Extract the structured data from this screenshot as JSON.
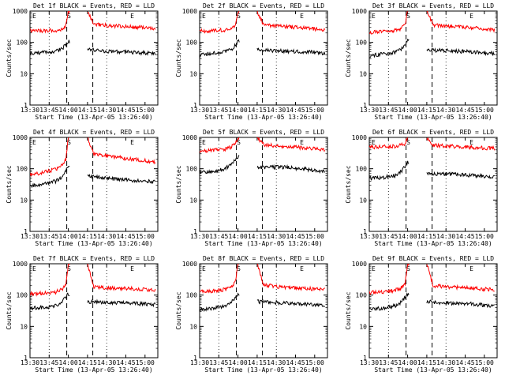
{
  "line_colors": {
    "events": "#000000",
    "lld": "#ff0000"
  },
  "chart_data": [
    {
      "type": "line",
      "title": "Det 1f BLACK = Events, RED = LLD",
      "xlabel": "Start Time (13-Apr-05 13:26:40)",
      "ylabel": "Counts/sec",
      "yscale": "log",
      "ylim": [
        1,
        1000
      ],
      "xlim": [
        "13:30",
        "15:10"
      ],
      "x_tick_labels": [
        "13:30",
        "13:45",
        "14:00",
        "14:15",
        "14:30",
        "14:45",
        "15:00"
      ],
      "y_tick_labels": [
        "1",
        "10",
        "100",
        "1000"
      ],
      "markers": {
        "S": "14:00",
        "E_start": "13:30",
        "E_end": "14:50"
      },
      "grid": "dotted vertical at 13:45 and 14:30",
      "series": [
        {
          "name": "Events",
          "color": "#000000",
          "x": [
            "13:30",
            "13:40",
            "13:50",
            "13:55",
            "13:58",
            "14:00",
            "14:15",
            "14:20",
            "14:30",
            "14:40",
            "14:50",
            "15:00",
            "15:08"
          ],
          "y": [
            44,
            48,
            52,
            62,
            85,
            110,
            58,
            56,
            52,
            50,
            48,
            46,
            44
          ]
        },
        {
          "name": "LLD",
          "color": "#ff0000",
          "x": [
            "13:30",
            "13:40",
            "13:50",
            "13:55",
            "13:58",
            "14:00",
            "14:15",
            "14:20",
            "14:30",
            "14:40",
            "14:50",
            "15:00",
            "15:08"
          ],
          "y": [
            230,
            235,
            240,
            270,
            340,
            1000,
            1000,
            380,
            350,
            330,
            310,
            300,
            280
          ]
        }
      ]
    },
    {
      "type": "line",
      "title": "Det 2f BLACK = Events, RED = LLD",
      "xlabel": "Start Time (13-Apr-05 13:26:40)",
      "ylabel": "Counts/sec",
      "yscale": "log",
      "ylim": [
        1,
        1000
      ],
      "xlim": [
        "13:30",
        "15:10"
      ],
      "x_tick_labels": [
        "13:30",
        "13:45",
        "14:00",
        "14:15",
        "14:30",
        "14:45",
        "15:00"
      ],
      "y_tick_labels": [
        "1",
        "10",
        "100",
        "1000"
      ],
      "markers": {
        "S": "14:00",
        "E_start": "13:30",
        "E_end": "14:50"
      },
      "grid": "dotted vertical at 13:45 and 14:30",
      "series": [
        {
          "name": "Events",
          "color": "#000000",
          "x": [
            "13:30",
            "13:40",
            "13:50",
            "13:55",
            "13:58",
            "14:00",
            "14:15",
            "14:20",
            "14:30",
            "14:40",
            "14:50",
            "15:00",
            "15:08"
          ],
          "y": [
            40,
            45,
            50,
            60,
            80,
            110,
            62,
            58,
            54,
            52,
            50,
            48,
            45
          ]
        },
        {
          "name": "LLD",
          "color": "#ff0000",
          "x": [
            "13:30",
            "13:40",
            "13:50",
            "13:55",
            "13:58",
            "14:00",
            "14:15",
            "14:20",
            "14:30",
            "14:40",
            "14:50",
            "15:00",
            "15:08"
          ],
          "y": [
            230,
            240,
            250,
            280,
            350,
            1000,
            1000,
            360,
            330,
            310,
            290,
            270,
            250
          ]
        }
      ]
    },
    {
      "type": "line",
      "title": "Det 3f BLACK = Events, RED = LLD",
      "xlabel": "Start Time (13-Apr-05 13:26:40)",
      "ylabel": "Counts/sec",
      "yscale": "log",
      "ylim": [
        1,
        1000
      ],
      "xlim": [
        "13:30",
        "15:10"
      ],
      "x_tick_labels": [
        "13:30",
        "13:45",
        "14:00",
        "14:15",
        "14:30",
        "14:45",
        "15:00"
      ],
      "y_tick_labels": [
        "1",
        "10",
        "100",
        "1000"
      ],
      "markers": {
        "S": "14:00",
        "E_start": "13:30",
        "E_end": "14:50"
      },
      "grid": "dotted vertical at 13:45 and 14:30",
      "series": [
        {
          "name": "Events",
          "color": "#000000",
          "x": [
            "13:30",
            "13:40",
            "13:50",
            "13:55",
            "13:58",
            "14:00",
            "14:15",
            "14:20",
            "14:30",
            "14:40",
            "14:50",
            "15:00",
            "15:08"
          ],
          "y": [
            38,
            42,
            48,
            60,
            82,
            120,
            60,
            56,
            54,
            52,
            50,
            47,
            44
          ]
        },
        {
          "name": "LLD",
          "color": "#ff0000",
          "x": [
            "13:30",
            "13:40",
            "13:50",
            "13:55",
            "13:58",
            "14:00",
            "14:15",
            "14:20",
            "14:30",
            "14:40",
            "14:50",
            "15:00",
            "15:08"
          ],
          "y": [
            210,
            220,
            240,
            280,
            350,
            1000,
            1000,
            360,
            330,
            310,
            290,
            270,
            250
          ]
        }
      ]
    },
    {
      "type": "line",
      "title": "Det 4f BLACK = Events, RED = LLD",
      "xlabel": "Start Time (13-Apr-05 13:26:40)",
      "ylabel": "Counts/sec",
      "yscale": "log",
      "ylim": [
        1,
        1000
      ],
      "xlim": [
        "13:30",
        "15:10"
      ],
      "x_tick_labels": [
        "13:30",
        "13:45",
        "14:00",
        "14:15",
        "14:30",
        "14:45",
        "15:00"
      ],
      "y_tick_labels": [
        "1",
        "10",
        "100",
        "1000"
      ],
      "markers": {
        "S": "14:00",
        "E_start": "13:30",
        "E_end": "14:50"
      },
      "grid": "dotted vertical at 13:45 and 14:30",
      "series": [
        {
          "name": "Events",
          "color": "#000000",
          "x": [
            "13:30",
            "13:40",
            "13:50",
            "13:55",
            "13:58",
            "14:00",
            "14:15",
            "14:20",
            "14:30",
            "14:40",
            "14:50",
            "15:00",
            "15:08"
          ],
          "y": [
            28,
            32,
            40,
            55,
            90,
            130,
            62,
            55,
            50,
            46,
            42,
            40,
            38
          ]
        },
        {
          "name": "LLD",
          "color": "#ff0000",
          "x": [
            "13:30",
            "13:40",
            "13:50",
            "13:55",
            "13:58",
            "14:00",
            "14:15",
            "14:20",
            "14:30",
            "14:40",
            "14:50",
            "15:00",
            "15:08"
          ],
          "y": [
            65,
            75,
            95,
            130,
            200,
            1000,
            1000,
            300,
            260,
            230,
            200,
            180,
            160
          ]
        }
      ]
    },
    {
      "type": "line",
      "title": "Det 5f BLACK = Events, RED = LLD",
      "xlabel": "Start Time (13-Apr-05 13:26:40)",
      "ylabel": "Counts/sec",
      "yscale": "log",
      "ylim": [
        1,
        1000
      ],
      "xlim": [
        "13:30",
        "15:10"
      ],
      "x_tick_labels": [
        "13:30",
        "13:45",
        "14:00",
        "14:15",
        "14:30",
        "14:45",
        "15:00"
      ],
      "y_tick_labels": [
        "1",
        "10",
        "100",
        "1000"
      ],
      "markers": {
        "S": "14:00",
        "E_start": "13:30",
        "E_end": "14:50"
      },
      "grid": "dotted vertical at 13:45 and 14:30",
      "series": [
        {
          "name": "Events",
          "color": "#000000",
          "x": [
            "13:30",
            "13:40",
            "13:50",
            "13:55",
            "13:58",
            "14:00",
            "14:15",
            "14:20",
            "14:30",
            "14:40",
            "14:50",
            "15:00",
            "15:08"
          ],
          "y": [
            75,
            80,
            100,
            140,
            200,
            250,
            110,
            110,
            112,
            110,
            100,
            90,
            80
          ]
        },
        {
          "name": "LLD",
          "color": "#ff0000",
          "x": [
            "13:30",
            "13:40",
            "13:50",
            "13:55",
            "13:58",
            "14:00",
            "14:15",
            "14:20",
            "14:30",
            "14:40",
            "14:50",
            "15:00",
            "15:08"
          ],
          "y": [
            360,
            380,
            420,
            500,
            650,
            1000,
            1000,
            580,
            540,
            500,
            470,
            430,
            400
          ]
        }
      ]
    },
    {
      "type": "line",
      "title": "Det 6f BLACK = Events, RED = LLD",
      "xlabel": "Start Time (13-Apr-05 13:26:40)",
      "ylabel": "Counts/sec",
      "yscale": "log",
      "ylim": [
        1,
        1000
      ],
      "xlim": [
        "13:30",
        "15:10"
      ],
      "x_tick_labels": [
        "13:30",
        "13:45",
        "14:00",
        "14:15",
        "14:30",
        "14:45",
        "15:00"
      ],
      "y_tick_labels": [
        "1",
        "10",
        "100",
        "1000"
      ],
      "markers": {
        "S": "14:00",
        "E_start": "13:30",
        "E_end": "14:50"
      },
      "grid": "dotted vertical at 13:45 and 14:30",
      "series": [
        {
          "name": "Events",
          "color": "#000000",
          "x": [
            "13:30",
            "13:40",
            "13:50",
            "13:55",
            "13:58",
            "14:00",
            "14:15",
            "14:20",
            "14:30",
            "14:40",
            "14:50",
            "15:00",
            "15:08"
          ],
          "y": [
            50,
            52,
            60,
            80,
            120,
            160,
            72,
            70,
            68,
            65,
            62,
            58,
            55
          ]
        },
        {
          "name": "LLD",
          "color": "#ff0000",
          "x": [
            "13:30",
            "13:40",
            "13:50",
            "13:55",
            "13:58",
            "14:00",
            "14:15",
            "14:20",
            "14:30",
            "14:40",
            "14:50",
            "15:00",
            "15:08"
          ],
          "y": [
            480,
            500,
            520,
            560,
            640,
            1000,
            1000,
            560,
            530,
            510,
            480,
            460,
            440
          ]
        }
      ]
    },
    {
      "type": "line",
      "title": "Det 7f BLACK = Events, RED = LLD",
      "xlabel": "Start Time (13-Apr-05 13:26:40)",
      "ylabel": "Counts/sec",
      "yscale": "log",
      "ylim": [
        1,
        1000
      ],
      "xlim": [
        "13:30",
        "15:10"
      ],
      "x_tick_labels": [
        "13:30",
        "13:45",
        "14:00",
        "14:15",
        "14:30",
        "14:45",
        "15:00"
      ],
      "y_tick_labels": [
        "1",
        "10",
        "100",
        "1000"
      ],
      "markers": {
        "S": "14:00",
        "E_start": "13:30",
        "E_end": "14:50"
      },
      "grid": "dotted vertical at 13:45 and 14:30",
      "series": [
        {
          "name": "Events",
          "color": "#000000",
          "x": [
            "13:30",
            "13:40",
            "13:50",
            "13:55",
            "13:58",
            "14:00",
            "14:15",
            "14:20",
            "14:30",
            "14:40",
            "14:50",
            "15:00",
            "15:08"
          ],
          "y": [
            38,
            40,
            45,
            60,
            85,
            110,
            62,
            60,
            58,
            56,
            54,
            52,
            50
          ]
        },
        {
          "name": "LLD",
          "color": "#ff0000",
          "x": [
            "13:30",
            "13:40",
            "13:50",
            "13:55",
            "13:58",
            "14:00",
            "14:15",
            "14:20",
            "14:30",
            "14:40",
            "14:50",
            "15:00",
            "15:08"
          ],
          "y": [
            110,
            115,
            125,
            150,
            200,
            1000,
            1000,
            180,
            170,
            165,
            160,
            150,
            145
          ]
        }
      ]
    },
    {
      "type": "line",
      "title": "Det 8f BLACK = Events, RED = LLD",
      "xlabel": "Start Time (13-Apr-05 13:26:40)",
      "ylabel": "Counts/sec",
      "yscale": "log",
      "ylim": [
        1,
        1000
      ],
      "xlim": [
        "13:30",
        "15:10"
      ],
      "x_tick_labels": [
        "13:30",
        "13:45",
        "14:00",
        "14:15",
        "14:30",
        "14:45",
        "15:00"
      ],
      "y_tick_labels": [
        "1",
        "10",
        "100",
        "1000"
      ],
      "markers": {
        "S": "14:00",
        "E_start": "13:30",
        "E_end": "14:50"
      },
      "grid": "dotted vertical at 13:45 and 14:30",
      "series": [
        {
          "name": "Events",
          "color": "#000000",
          "x": [
            "13:30",
            "13:40",
            "13:50",
            "13:55",
            "13:58",
            "14:00",
            "14:15",
            "14:20",
            "14:30",
            "14:40",
            "14:50",
            "15:00",
            "15:08"
          ],
          "y": [
            35,
            38,
            45,
            60,
            85,
            110,
            62,
            60,
            58,
            55,
            52,
            48,
            45
          ]
        },
        {
          "name": "LLD",
          "color": "#ff0000",
          "x": [
            "13:30",
            "13:40",
            "13:50",
            "13:55",
            "13:58",
            "14:00",
            "14:15",
            "14:20",
            "14:30",
            "14:40",
            "14:50",
            "15:00",
            "15:08"
          ],
          "y": [
            130,
            135,
            150,
            185,
            260,
            1000,
            1000,
            210,
            190,
            175,
            165,
            155,
            150
          ]
        }
      ]
    },
    {
      "type": "line",
      "title": "Det 9f BLACK = Events, RED = LLD",
      "xlabel": "Start Time (13-Apr-05 13:26:40)",
      "ylabel": "Counts/sec",
      "yscale": "log",
      "ylim": [
        1,
        1000
      ],
      "xlim": [
        "13:30",
        "15:10"
      ],
      "x_tick_labels": [
        "13:30",
        "13:45",
        "14:00",
        "14:15",
        "14:30",
        "14:45",
        "15:00"
      ],
      "y_tick_labels": [
        "1",
        "10",
        "100",
        "1000"
      ],
      "markers": {
        "S": "14:00",
        "E_start": "13:30",
        "E_end": "14:50"
      },
      "grid": "dotted vertical at 13:45 and 14:30",
      "series": [
        {
          "name": "Events",
          "color": "#000000",
          "x": [
            "13:30",
            "13:40",
            "13:50",
            "13:55",
            "13:58",
            "14:00",
            "14:15",
            "14:20",
            "14:30",
            "14:40",
            "14:50",
            "15:00",
            "15:08"
          ],
          "y": [
            35,
            38,
            45,
            60,
            85,
            110,
            62,
            60,
            56,
            54,
            52,
            48,
            45
          ]
        },
        {
          "name": "LLD",
          "color": "#ff0000",
          "x": [
            "13:30",
            "13:40",
            "13:50",
            "13:55",
            "13:58",
            "14:00",
            "14:15",
            "14:20",
            "14:30",
            "14:40",
            "14:50",
            "15:00",
            "15:08"
          ],
          "y": [
            120,
            125,
            140,
            170,
            230,
            1000,
            1000,
            200,
            185,
            175,
            165,
            155,
            150
          ]
        }
      ]
    }
  ]
}
